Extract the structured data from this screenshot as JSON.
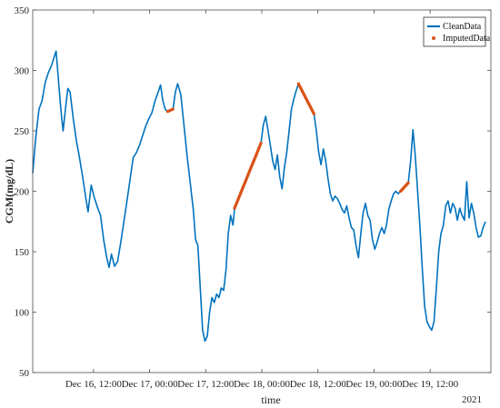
{
  "chart_data": {
    "type": "line",
    "xlabel": "time",
    "ylabel": "CGM(mg/dL)",
    "year_label": "2021",
    "ylim": [
      50,
      350
    ],
    "yticks": [
      50,
      100,
      150,
      200,
      250,
      300,
      350
    ],
    "xticks": [
      {
        "at": "2021-12-16 12:00",
        "label": "Dec 16, 12:00"
      },
      {
        "at": "2021-12-17 00:00",
        "label": "Dec 17, 00:00"
      },
      {
        "at": "2021-12-17 12:00",
        "label": "Dec 17, 12:00"
      },
      {
        "at": "2021-12-18 00:00",
        "label": "Dec 18, 00:00"
      },
      {
        "at": "2021-12-18 12:00",
        "label": "Dec 18, 12:00"
      },
      {
        "at": "2021-12-19 00:00",
        "label": "Dec 19, 00:00"
      },
      {
        "at": "2021-12-19 12:00",
        "label": "Dec 19, 12:00"
      }
    ],
    "xlim": [
      "2021-12-15 23:00",
      "2021-12-20 01:00"
    ],
    "grid": false,
    "legend_position": "top-right",
    "series": [
      {
        "name": "CleanData",
        "style": "line",
        "color": "#0072BD",
        "points": [
          [
            "2021-12-15 23:00",
            215
          ],
          [
            "2021-12-15 23:40",
            245
          ],
          [
            "2021-12-16 00:20",
            268
          ],
          [
            "2021-12-16 01:00",
            275
          ],
          [
            "2021-12-16 01:40",
            290
          ],
          [
            "2021-12-16 02:20",
            298
          ],
          [
            "2021-12-16 03:00",
            304
          ],
          [
            "2021-12-16 03:30",
            310
          ],
          [
            "2021-12-16 04:00",
            316
          ],
          [
            "2021-12-16 04:30",
            292
          ],
          [
            "2021-12-16 05:00",
            268
          ],
          [
            "2021-12-16 05:30",
            250
          ],
          [
            "2021-12-16 06:00",
            268
          ],
          [
            "2021-12-16 06:30",
            285
          ],
          [
            "2021-12-16 07:00",
            282
          ],
          [
            "2021-12-16 07:40",
            260
          ],
          [
            "2021-12-16 08:20",
            242
          ],
          [
            "2021-12-16 09:00",
            228
          ],
          [
            "2021-12-16 09:40",
            212
          ],
          [
            "2021-12-16 10:20",
            195
          ],
          [
            "2021-12-16 10:50",
            183
          ],
          [
            "2021-12-16 11:30",
            205
          ],
          [
            "2021-12-16 12:10",
            195
          ],
          [
            "2021-12-16 12:50",
            187
          ],
          [
            "2021-12-16 13:30",
            180
          ],
          [
            "2021-12-16 14:10",
            160
          ],
          [
            "2021-12-16 14:50",
            145
          ],
          [
            "2021-12-16 15:20",
            137
          ],
          [
            "2021-12-16 15:50",
            148
          ],
          [
            "2021-12-16 16:30",
            138
          ],
          [
            "2021-12-16 17:10",
            142
          ],
          [
            "2021-12-16 17:50",
            158
          ],
          [
            "2021-12-16 18:30",
            175
          ],
          [
            "2021-12-16 19:10",
            192
          ],
          [
            "2021-12-16 19:50",
            210
          ],
          [
            "2021-12-16 20:30",
            228
          ],
          [
            "2021-12-16 21:10",
            232
          ],
          [
            "2021-12-16 21:50",
            238
          ],
          [
            "2021-12-16 22:30",
            246
          ],
          [
            "2021-12-16 23:10",
            254
          ],
          [
            "2021-12-16 23:50",
            260
          ],
          [
            "2021-12-17 00:30",
            265
          ],
          [
            "2021-12-17 01:10",
            275
          ],
          [
            "2021-12-17 01:50",
            282
          ],
          [
            "2021-12-17 02:20",
            288
          ],
          [
            "2021-12-17 02:50",
            275
          ],
          [
            "2021-12-17 03:20",
            268
          ],
          [
            "2021-12-17 03:50",
            266
          ],
          [
            "2021-12-17 05:00",
            268
          ],
          [
            "2021-12-17 05:30",
            282
          ],
          [
            "2021-12-17 06:00",
            289
          ],
          [
            "2021-12-17 06:40",
            280
          ],
          [
            "2021-12-17 07:20",
            255
          ],
          [
            "2021-12-17 08:00",
            230
          ],
          [
            "2021-12-17 08:40",
            208
          ],
          [
            "2021-12-17 09:20",
            185
          ],
          [
            "2021-12-17 09:50",
            160
          ],
          [
            "2021-12-17 10:20",
            155
          ],
          [
            "2021-12-17 10:50",
            120
          ],
          [
            "2021-12-17 11:20",
            85
          ],
          [
            "2021-12-17 11:50",
            76
          ],
          [
            "2021-12-17 12:20",
            80
          ],
          [
            "2021-12-17 12:50",
            100
          ],
          [
            "2021-12-17 13:20",
            112
          ],
          [
            "2021-12-17 13:50",
            108
          ],
          [
            "2021-12-17 14:20",
            115
          ],
          [
            "2021-12-17 14:50",
            112
          ],
          [
            "2021-12-17 15:20",
            120
          ],
          [
            "2021-12-17 15:50",
            118
          ],
          [
            "2021-12-17 16:20",
            135
          ],
          [
            "2021-12-17 16:50",
            165
          ],
          [
            "2021-12-17 17:20",
            180
          ],
          [
            "2021-12-17 17:50",
            172
          ],
          [
            "2021-12-17 18:10",
            186
          ],
          [
            "2021-12-17 23:50",
            240
          ],
          [
            "2021-12-18 00:20",
            255
          ],
          [
            "2021-12-18 00:50",
            262
          ],
          [
            "2021-12-18 01:20",
            250
          ],
          [
            "2021-12-18 01:50",
            238
          ],
          [
            "2021-12-18 02:20",
            225
          ],
          [
            "2021-12-18 02:50",
            218
          ],
          [
            "2021-12-18 03:20",
            230
          ],
          [
            "2021-12-18 03:50",
            212
          ],
          [
            "2021-12-18 04:20",
            202
          ],
          [
            "2021-12-18 04:50",
            220
          ],
          [
            "2021-12-18 05:20",
            232
          ],
          [
            "2021-12-18 05:50",
            250
          ],
          [
            "2021-12-18 06:20",
            268
          ],
          [
            "2021-12-18 06:50",
            276
          ],
          [
            "2021-12-18 07:20",
            283
          ],
          [
            "2021-12-18 07:50",
            289
          ],
          [
            "2021-12-18 11:10",
            264
          ],
          [
            "2021-12-18 11:40",
            250
          ],
          [
            "2021-12-18 12:10",
            232
          ],
          [
            "2021-12-18 12:40",
            222
          ],
          [
            "2021-12-18 13:10",
            235
          ],
          [
            "2021-12-18 13:40",
            225
          ],
          [
            "2021-12-18 14:10",
            210
          ],
          [
            "2021-12-18 14:40",
            198
          ],
          [
            "2021-12-18 15:10",
            192
          ],
          [
            "2021-12-18 15:40",
            196
          ],
          [
            "2021-12-18 16:10",
            194
          ],
          [
            "2021-12-18 16:40",
            190
          ],
          [
            "2021-12-18 17:10",
            185
          ],
          [
            "2021-12-18 17:40",
            182
          ],
          [
            "2021-12-18 18:10",
            188
          ],
          [
            "2021-12-18 18:40",
            178
          ],
          [
            "2021-12-18 19:10",
            170
          ],
          [
            "2021-12-18 19:40",
            168
          ],
          [
            "2021-12-18 20:10",
            155
          ],
          [
            "2021-12-18 20:40",
            145
          ],
          [
            "2021-12-18 21:10",
            165
          ],
          [
            "2021-12-18 21:40",
            182
          ],
          [
            "2021-12-18 22:10",
            190
          ],
          [
            "2021-12-18 22:40",
            180
          ],
          [
            "2021-12-18 23:10",
            176
          ],
          [
            "2021-12-18 23:40",
            160
          ],
          [
            "2021-12-19 00:10",
            152
          ],
          [
            "2021-12-19 00:40",
            158
          ],
          [
            "2021-12-19 01:10",
            165
          ],
          [
            "2021-12-19 01:40",
            170
          ],
          [
            "2021-12-19 02:10",
            165
          ],
          [
            "2021-12-19 02:40",
            172
          ],
          [
            "2021-12-19 03:10",
            185
          ],
          [
            "2021-12-19 03:40",
            192
          ],
          [
            "2021-12-19 04:10",
            198
          ],
          [
            "2021-12-19 04:40",
            200
          ],
          [
            "2021-12-19 05:10",
            198
          ],
          [
            "2021-12-19 05:40",
            200
          ],
          [
            "2021-12-19 07:20",
            207
          ],
          [
            "2021-12-19 07:50",
            225
          ],
          [
            "2021-12-19 08:20",
            251
          ],
          [
            "2021-12-19 08:50",
            228
          ],
          [
            "2021-12-19 09:20",
            200
          ],
          [
            "2021-12-19 09:50",
            170
          ],
          [
            "2021-12-19 10:20",
            135
          ],
          [
            "2021-12-19 10:50",
            105
          ],
          [
            "2021-12-19 11:20",
            92
          ],
          [
            "2021-12-19 11:50",
            88
          ],
          [
            "2021-12-19 12:20",
            85
          ],
          [
            "2021-12-19 12:50",
            92
          ],
          [
            "2021-12-19 13:20",
            120
          ],
          [
            "2021-12-19 13:50",
            150
          ],
          [
            "2021-12-19 14:20",
            165
          ],
          [
            "2021-12-19 14:50",
            172
          ],
          [
            "2021-12-19 15:20",
            188
          ],
          [
            "2021-12-19 15:50",
            192
          ],
          [
            "2021-12-19 16:20",
            182
          ],
          [
            "2021-12-19 16:50",
            190
          ],
          [
            "2021-12-19 17:20",
            186
          ],
          [
            "2021-12-19 17:50",
            176
          ],
          [
            "2021-12-19 18:20",
            186
          ],
          [
            "2021-12-19 18:50",
            180
          ],
          [
            "2021-12-19 19:20",
            176
          ],
          [
            "2021-12-19 19:50",
            208
          ],
          [
            "2021-12-19 20:20",
            178
          ],
          [
            "2021-12-19 20:50",
            190
          ],
          [
            "2021-12-19 21:20",
            182
          ],
          [
            "2021-12-19 21:50",
            170
          ],
          [
            "2021-12-19 22:20",
            162
          ],
          [
            "2021-12-19 22:50",
            163
          ],
          [
            "2021-12-19 23:20",
            170
          ],
          [
            "2021-12-19 23:50",
            175
          ]
        ]
      },
      {
        "name": "ImputedData",
        "style": "markers",
        "color": "#D95319",
        "segments": [
          {
            "start": [
              "2021-12-17 03:50",
              266
            ],
            "end": [
              "2021-12-17 05:00",
              268
            ]
          },
          {
            "start": [
              "2021-12-17 18:10",
              186
            ],
            "end": [
              "2021-12-17 23:50",
              240
            ]
          },
          {
            "start": [
              "2021-12-18 07:50",
              289
            ],
            "end": [
              "2021-12-18 11:10",
              264
            ]
          },
          {
            "start": [
              "2021-12-19 05:40",
              200
            ],
            "end": [
              "2021-12-19 07:20",
              207
            ]
          }
        ]
      }
    ]
  }
}
